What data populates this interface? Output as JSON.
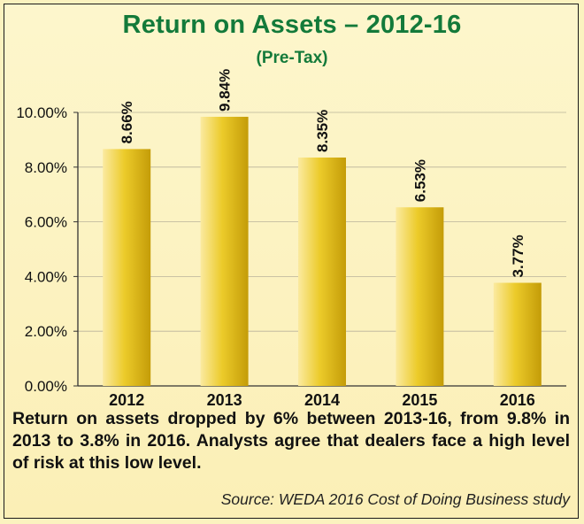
{
  "chart_data": {
    "type": "bar",
    "title": "Return on Assets – 2012-16",
    "subtitle": "(Pre-Tax)",
    "categories": [
      "2012",
      "2013",
      "2014",
      "2015",
      "2016"
    ],
    "values": [
      8.66,
      9.84,
      8.35,
      6.53,
      3.77
    ],
    "data_labels": [
      "8.66%",
      "9.84%",
      "8.35%",
      "6.53%",
      "3.77%"
    ],
    "y_ticks": [
      "0.00%",
      "2.00%",
      "4.00%",
      "6.00%",
      "8.00%",
      "10.00%"
    ],
    "ylim": [
      0,
      10
    ],
    "grid": true,
    "colors": {
      "bar_light": "#fbeaa0",
      "bar_mid": "#edcb27",
      "bar_dark": "#c59e0a",
      "title": "#137a3a"
    }
  },
  "caption": "Return on assets dropped by 6% between 2013-16, from 9.8% in 2013 to 3.8% in 2016. Analysts agree that dealers face a high level of risk at this low level.",
  "source": "Source: WEDA 2016 Cost of Doing Business study"
}
